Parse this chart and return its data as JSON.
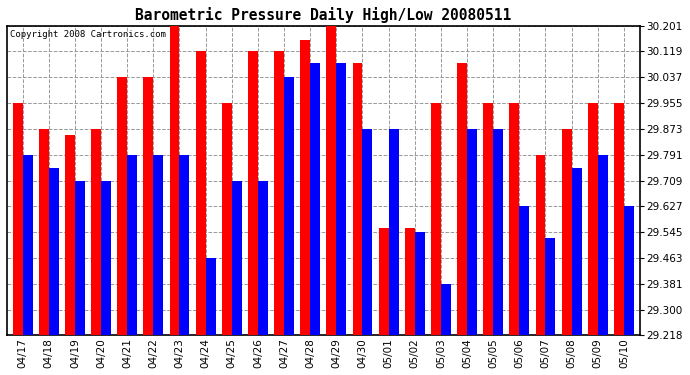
{
  "title": "Barometric Pressure Daily High/Low 20080511",
  "copyright": "Copyright 2008 Cartronics.com",
  "dates": [
    "04/17",
    "04/18",
    "04/19",
    "04/20",
    "04/21",
    "04/22",
    "04/23",
    "04/24",
    "04/25",
    "04/26",
    "04/27",
    "04/28",
    "04/29",
    "04/30",
    "05/01",
    "05/02",
    "05/03",
    "05/04",
    "05/05",
    "05/06",
    "05/07",
    "05/08",
    "05/09",
    "05/10"
  ],
  "highs": [
    29.955,
    29.873,
    29.853,
    29.873,
    30.037,
    30.037,
    30.201,
    30.119,
    29.955,
    30.119,
    30.119,
    30.155,
    30.201,
    30.082,
    29.56,
    29.56,
    29.955,
    30.082,
    29.955,
    29.955,
    29.791,
    29.873,
    29.955,
    29.955
  ],
  "lows": [
    29.791,
    29.75,
    29.709,
    29.709,
    29.791,
    29.791,
    29.791,
    29.463,
    29.709,
    29.709,
    30.037,
    30.082,
    30.082,
    29.873,
    29.873,
    29.545,
    29.381,
    29.873,
    29.873,
    29.627,
    29.527,
    29.75,
    29.791,
    29.627
  ],
  "ymin": 29.218,
  "ymax": 30.201,
  "yticks": [
    29.218,
    29.3,
    29.381,
    29.463,
    29.545,
    29.627,
    29.709,
    29.791,
    29.873,
    29.955,
    30.037,
    30.119,
    30.201
  ],
  "high_color": "#FF0000",
  "low_color": "#0000FF",
  "bg_color": "#FFFFFF",
  "plot_bg_color": "#FFFFFF",
  "grid_color": "#999999",
  "bar_width": 0.38,
  "figwidth": 6.9,
  "figheight": 3.75,
  "dpi": 100
}
